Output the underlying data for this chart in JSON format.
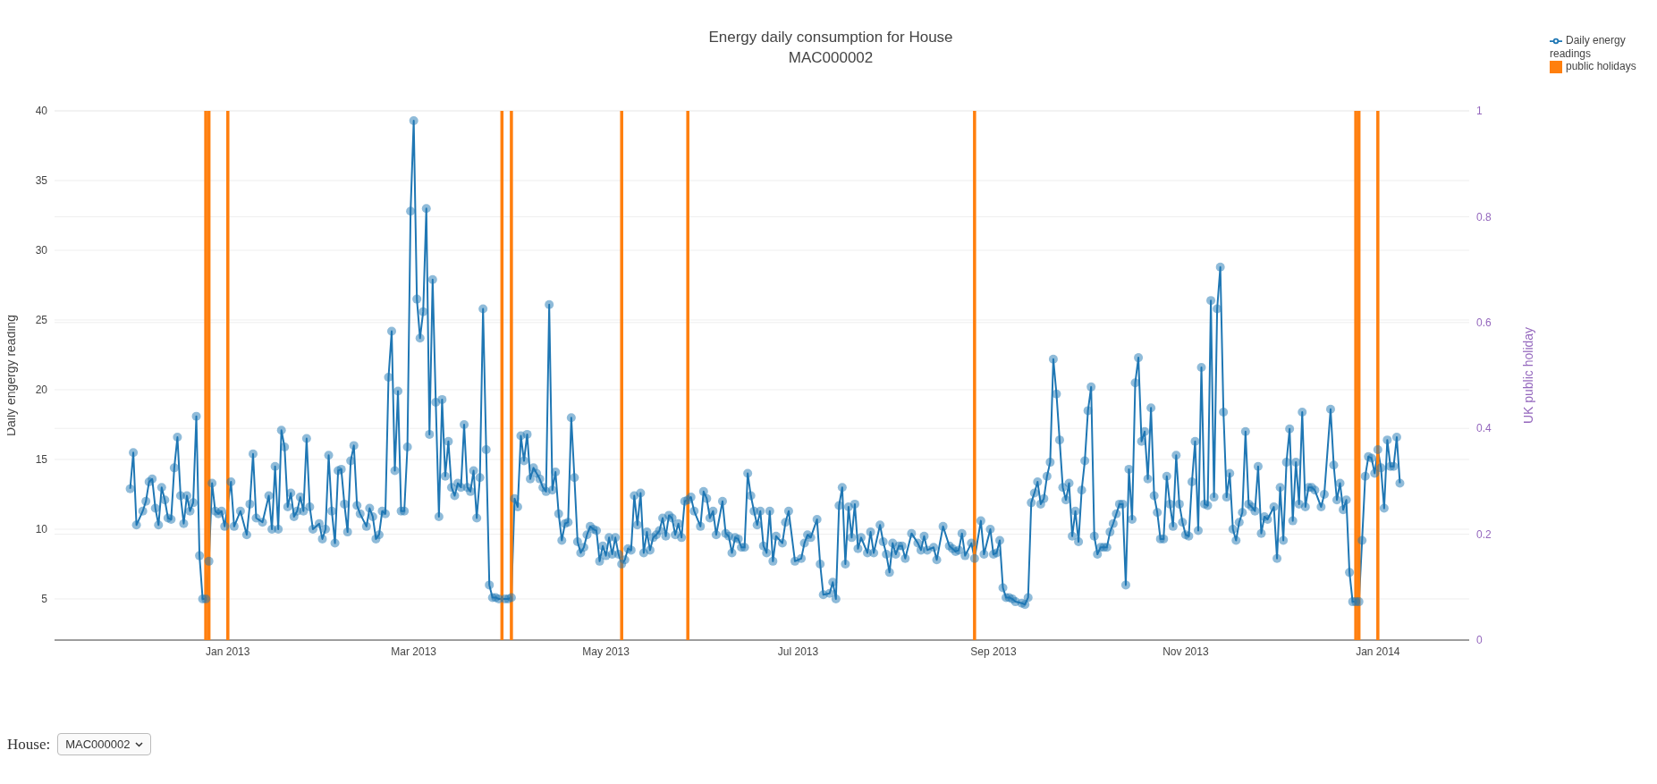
{
  "chart_data": {
    "type": "line",
    "title": "Energy daily consumption for House\nMAC000002",
    "ylabel": "Daily engergy reading",
    "y2label": "UK public holiday",
    "xlim": [
      "2012-11-07",
      "2014-01-30"
    ],
    "xticks": [
      {
        "value": "2013-01-01",
        "label": "Jan 2013"
      },
      {
        "value": "2013-03-01",
        "label": "Mar 2013"
      },
      {
        "value": "2013-05-01",
        "label": "May 2013"
      },
      {
        "value": "2013-07-01",
        "label": "Jul 2013"
      },
      {
        "value": "2013-09-01",
        "label": "Sep 2013"
      },
      {
        "value": "2013-11-01",
        "label": "Nov 2013"
      },
      {
        "value": "2014-01-01",
        "label": "Jan 2014"
      }
    ],
    "ylim": [
      2.05,
      40
    ],
    "yticks": [
      5,
      10,
      15,
      20,
      25,
      30,
      35,
      40
    ],
    "y2lim": [
      0,
      1
    ],
    "y2ticks": [
      0,
      0.2,
      0.4,
      0.6,
      0.8,
      1
    ],
    "grid": "y",
    "legend": "top right",
    "marker": "circle",
    "annotations": [
      "House:",
      "MAC000002"
    ],
    "series": [
      {
        "name": "Daily energy readings",
        "color": "#1f77b4",
        "x": [
          "2012-12-01",
          "2012-12-02",
          "2012-12-03",
          "2012-12-05",
          "2012-12-06",
          "2012-12-07",
          "2012-12-08",
          "2012-12-09",
          "2012-12-10",
          "2012-12-11",
          "2012-12-12",
          "2012-12-13",
          "2012-12-14",
          "2012-12-15",
          "2012-12-16",
          "2012-12-17",
          "2012-12-18",
          "2012-12-19",
          "2012-12-20",
          "2012-12-21",
          "2012-12-22",
          "2012-12-23",
          "2012-12-24",
          "2012-12-25",
          "2012-12-26",
          "2012-12-27",
          "2012-12-28",
          "2012-12-29",
          "2012-12-30",
          "2012-12-31",
          "2013-01-02",
          "2013-01-03",
          "2013-01-05",
          "2013-01-07",
          "2013-01-08",
          "2013-01-09",
          "2013-01-10",
          "2013-01-12",
          "2013-01-14",
          "2013-01-15",
          "2013-01-16",
          "2013-01-17",
          "2013-01-18",
          "2013-01-19",
          "2013-01-20",
          "2013-01-21",
          "2013-01-22",
          "2013-01-23",
          "2013-01-24",
          "2013-01-25",
          "2013-01-26",
          "2013-01-27",
          "2013-01-28",
          "2013-01-30",
          "2013-01-31",
          "2013-02-01",
          "2013-02-02",
          "2013-02-03",
          "2013-02-04",
          "2013-02-05",
          "2013-02-06",
          "2013-02-07",
          "2013-02-08",
          "2013-02-09",
          "2013-02-10",
          "2013-02-11",
          "2013-02-12",
          "2013-02-14",
          "2013-02-15",
          "2013-02-16",
          "2013-02-17",
          "2013-02-18",
          "2013-02-19",
          "2013-02-20",
          "2013-02-21",
          "2013-02-22",
          "2013-02-23",
          "2013-02-24",
          "2013-02-25",
          "2013-02-26",
          "2013-02-27",
          "2013-02-28",
          "2013-03-01",
          "2013-03-02",
          "2013-03-03",
          "2013-03-04",
          "2013-03-05",
          "2013-03-06",
          "2013-03-07",
          "2013-03-08",
          "2013-03-09",
          "2013-03-10",
          "2013-03-11",
          "2013-03-12",
          "2013-03-13",
          "2013-03-14",
          "2013-03-15",
          "2013-03-16",
          "2013-03-17",
          "2013-03-18",
          "2013-03-19",
          "2013-03-20",
          "2013-03-21",
          "2013-03-22",
          "2013-03-23",
          "2013-03-24",
          "2013-03-25",
          "2013-03-26",
          "2013-03-27",
          "2013-03-28",
          "2013-03-30",
          "2013-03-31",
          "2013-04-01",
          "2013-04-02",
          "2013-04-03",
          "2013-04-04",
          "2013-04-05",
          "2013-04-06",
          "2013-04-07",
          "2013-04-08",
          "2013-04-09",
          "2013-04-10",
          "2013-04-11",
          "2013-04-12",
          "2013-04-13",
          "2013-04-14",
          "2013-04-15",
          "2013-04-16",
          "2013-04-17",
          "2013-04-18",
          "2013-04-19",
          "2013-04-20",
          "2013-04-21",
          "2013-04-22",
          "2013-04-23",
          "2013-04-24",
          "2013-04-25",
          "2013-04-26",
          "2013-04-27",
          "2013-04-28",
          "2013-04-29",
          "2013-04-30",
          "2013-05-01",
          "2013-05-02",
          "2013-05-03",
          "2013-05-04",
          "2013-05-05",
          "2013-05-06",
          "2013-05-07",
          "2013-05-08",
          "2013-05-09",
          "2013-05-10",
          "2013-05-11",
          "2013-05-12",
          "2013-05-13",
          "2013-05-14",
          "2013-05-15",
          "2013-05-16",
          "2013-05-17",
          "2013-05-18",
          "2013-05-19",
          "2013-05-20",
          "2013-05-21",
          "2013-05-22",
          "2013-05-23",
          "2013-05-24",
          "2013-05-25",
          "2013-05-26",
          "2013-05-27",
          "2013-05-28",
          "2013-05-29",
          "2013-05-31",
          "2013-06-01",
          "2013-06-02",
          "2013-06-03",
          "2013-06-04",
          "2013-06-05",
          "2013-06-07",
          "2013-06-08",
          "2013-06-09",
          "2013-06-10",
          "2013-06-11",
          "2013-06-12",
          "2013-06-13",
          "2013-06-14",
          "2013-06-15",
          "2013-06-16",
          "2013-06-17",
          "2013-06-18",
          "2013-06-19",
          "2013-06-20",
          "2013-06-21",
          "2013-06-22",
          "2013-06-23",
          "2013-06-24",
          "2013-06-26",
          "2013-06-27",
          "2013-06-28",
          "2013-06-30",
          "2013-07-02",
          "2013-07-03",
          "2013-07-04",
          "2013-07-05",
          "2013-07-07",
          "2013-07-08",
          "2013-07-09",
          "2013-07-11",
          "2013-07-12",
          "2013-07-13",
          "2013-07-14",
          "2013-07-15",
          "2013-07-16",
          "2013-07-17",
          "2013-07-18",
          "2013-07-19",
          "2013-07-20",
          "2013-07-21",
          "2013-07-23",
          "2013-07-24",
          "2013-07-25",
          "2013-07-27",
          "2013-07-28",
          "2013-07-29",
          "2013-07-30",
          "2013-07-31",
          "2013-08-01",
          "2013-08-02",
          "2013-08-03",
          "2013-08-04",
          "2013-08-06",
          "2013-08-08",
          "2013-08-09",
          "2013-08-10",
          "2013-08-11",
          "2013-08-13",
          "2013-08-14",
          "2013-08-16",
          "2013-08-18",
          "2013-08-19",
          "2013-08-20",
          "2013-08-21",
          "2013-08-22",
          "2013-08-23",
          "2013-08-25",
          "2013-08-26",
          "2013-08-28",
          "2013-08-29",
          "2013-08-31",
          "2013-09-01",
          "2013-09-02",
          "2013-09-03",
          "2013-09-04",
          "2013-09-05",
          "2013-09-06",
          "2013-09-07",
          "2013-09-08",
          "2013-09-10",
          "2013-09-11",
          "2013-09-12",
          "2013-09-13",
          "2013-09-14",
          "2013-09-15",
          "2013-09-16",
          "2013-09-17",
          "2013-09-18",
          "2013-09-19",
          "2013-09-20",
          "2013-09-21",
          "2013-09-22",
          "2013-09-23",
          "2013-09-24",
          "2013-09-25",
          "2013-09-26",
          "2013-09-27",
          "2013-09-28",
          "2013-09-29",
          "2013-09-30",
          "2013-10-01",
          "2013-10-02",
          "2013-10-03",
          "2013-10-04",
          "2013-10-05",
          "2013-10-06",
          "2013-10-07",
          "2013-10-08",
          "2013-10-09",
          "2013-10-10",
          "2013-10-11",
          "2013-10-12",
          "2013-10-13",
          "2013-10-14",
          "2013-10-15",
          "2013-10-16",
          "2013-10-17",
          "2013-10-18",
          "2013-10-19",
          "2013-10-20",
          "2013-10-21",
          "2013-10-22",
          "2013-10-23",
          "2013-10-24",
          "2013-10-25",
          "2013-10-26",
          "2013-10-27",
          "2013-10-28",
          "2013-10-29",
          "2013-10-30",
          "2013-10-31",
          "2013-11-01",
          "2013-11-02",
          "2013-11-03",
          "2013-11-04",
          "2013-11-05",
          "2013-11-06",
          "2013-11-07",
          "2013-11-08",
          "2013-11-09",
          "2013-11-10",
          "2013-11-11",
          "2013-11-12",
          "2013-11-13",
          "2013-11-14",
          "2013-11-15",
          "2013-11-16",
          "2013-11-17",
          "2013-11-18",
          "2013-11-19",
          "2013-11-20",
          "2013-11-21",
          "2013-11-22",
          "2013-11-23",
          "2013-11-24",
          "2013-11-25",
          "2013-11-26",
          "2013-11-27",
          "2013-11-29",
          "2013-11-30",
          "2013-12-01",
          "2013-12-02",
          "2013-12-03",
          "2013-12-04",
          "2013-12-05",
          "2013-12-06",
          "2013-12-07",
          "2013-12-08",
          "2013-12-09",
          "2013-12-10",
          "2013-12-11",
          "2013-12-12",
          "2013-12-14",
          "2013-12-15",
          "2013-12-17",
          "2013-12-18",
          "2013-12-19",
          "2013-12-20",
          "2013-12-21",
          "2013-12-22",
          "2013-12-23",
          "2013-12-24",
          "2013-12-25",
          "2013-12-26",
          "2013-12-27",
          "2013-12-28",
          "2013-12-29",
          "2013-12-30",
          "2013-12-31",
          "2014-01-01",
          "2014-01-02",
          "2014-01-03",
          "2014-01-04",
          "2014-01-05",
          "2014-01-06",
          "2014-01-07",
          "2014-01-08"
        ],
        "values": [
          12.9,
          15.5,
          10.3,
          11.3,
          12.0,
          13.4,
          13.6,
          11.5,
          10.3,
          13.0,
          12.1,
          10.8,
          10.7,
          14.4,
          16.6,
          12.4,
          10.4,
          12.4,
          11.3,
          11.9,
          18.1,
          8.1,
          5.0,
          5.0,
          7.7,
          13.3,
          11.3,
          11.1,
          11.3,
          10.2,
          13.4,
          10.2,
          11.3,
          9.6,
          11.8,
          15.4,
          10.8,
          10.5,
          12.4,
          10.0,
          14.5,
          10.0,
          17.1,
          15.9,
          11.6,
          12.6,
          10.9,
          11.3,
          12.3,
          11.3,
          16.5,
          11.6,
          10.0,
          10.4,
          9.3,
          10.0,
          15.3,
          11.3,
          9.0,
          14.2,
          14.3,
          11.8,
          9.8,
          14.9,
          16.0,
          11.7,
          11.1,
          10.2,
          11.5,
          10.9,
          9.3,
          9.6,
          11.3,
          11.1,
          20.9,
          24.2,
          14.2,
          19.9,
          11.3,
          11.3,
          15.9,
          32.8,
          39.3,
          26.5,
          23.7,
          25.6,
          33.0,
          16.8,
          27.9,
          19.1,
          10.9,
          19.3,
          13.8,
          16.3,
          13.0,
          12.4,
          13.3,
          13.0,
          17.5,
          13.0,
          12.7,
          14.2,
          10.8,
          13.7,
          25.8,
          15.7,
          6.0,
          5.1,
          5.1,
          5.0,
          5.0,
          5.0,
          5.1,
          12.2,
          11.6,
          16.7,
          14.9,
          16.8,
          13.6,
          14.4,
          14.0,
          13.6,
          13.0,
          12.7,
          26.1,
          12.8,
          14.1,
          11.1,
          9.2,
          10.4,
          10.5,
          18.0,
          13.7,
          9.1,
          8.3,
          8.7,
          9.6,
          10.2,
          10.0,
          9.9,
          7.7,
          8.8,
          8.1,
          9.4,
          8.2,
          9.4,
          8.2,
          7.5,
          7.8,
          8.6,
          8.5,
          12.4,
          10.3,
          12.6,
          8.3,
          9.8,
          8.5,
          9.4,
          9.6,
          9.9,
          10.8,
          9.5,
          11.0,
          10.8,
          9.6,
          10.4,
          9.4,
          12.0,
          12.1,
          12.3,
          11.3,
          10.2,
          12.7,
          12.2,
          10.8,
          11.3,
          9.6,
          12.0,
          9.7,
          9.5,
          8.3,
          9.4,
          9.3,
          8.7,
          8.7,
          14.0,
          12.4,
          11.3,
          10.3,
          11.3,
          8.8,
          8.3,
          11.3,
          7.7,
          9.5,
          9.0,
          10.5,
          11.3,
          7.7,
          7.9,
          9.0,
          9.6,
          9.4,
          10.7,
          7.5,
          5.3,
          5.4,
          6.2,
          5.0,
          11.7,
          13.0,
          7.5,
          11.6,
          9.4,
          11.8,
          8.6,
          9.4,
          8.3,
          9.8,
          8.3,
          10.3,
          9.1,
          8.2,
          6.9,
          9.0,
          8.2,
          8.8,
          8.8,
          7.9,
          9.7,
          9.0,
          8.5,
          9.5,
          8.5,
          8.7,
          7.8,
          10.2,
          8.8,
          8.6,
          8.4,
          8.5,
          9.7,
          8.1,
          9.0,
          7.9,
          10.6,
          8.2,
          10.0,
          8.2,
          8.3,
          9.2,
          5.8,
          5.1,
          5.1,
          5.0,
          4.8,
          4.7,
          4.6,
          5.1,
          11.9,
          12.6,
          13.4,
          11.8,
          12.2,
          13.8,
          14.8,
          22.2,
          19.7,
          16.4,
          13.0,
          12.1,
          13.3,
          9.5,
          11.3,
          9.1,
          12.8,
          14.9,
          18.5,
          20.2,
          9.5,
          8.2,
          8.7,
          8.7,
          8.7,
          9.8,
          10.4,
          11.1,
          11.8,
          11.8,
          6.0,
          14.3,
          10.7,
          20.5,
          22.3,
          16.3,
          17.0,
          13.6,
          18.7,
          12.4,
          11.2,
          9.3,
          9.3,
          13.8,
          11.8,
          10.2,
          15.3,
          11.8,
          10.5,
          9.6,
          9.5,
          13.4,
          16.3,
          9.9,
          21.6,
          11.8,
          11.7,
          26.4,
          12.3,
          25.8,
          28.8,
          18.4,
          12.3,
          14.0,
          10.0,
          9.2,
          10.5,
          11.2,
          17.0,
          11.8,
          11.6,
          11.3,
          14.5,
          9.7,
          10.9,
          10.7,
          11.6,
          7.9,
          13.0,
          9.2,
          14.8,
          17.2,
          10.6,
          14.8,
          11.8,
          18.4,
          11.6,
          13.0,
          13.0,
          12.8,
          11.6,
          12.5,
          18.6,
          14.6,
          12.1,
          13.3,
          11.4,
          12.1,
          6.9,
          4.8,
          4.8,
          4.8,
          9.2,
          13.8,
          15.2,
          15.1,
          14.0,
          15.7,
          14.4,
          11.5,
          16.4,
          14.5,
          14.5,
          16.6,
          13.3
        ]
      },
      {
        "name": "public holidays",
        "type": "bar",
        "axis": "y2",
        "color": "#ff7f0e",
        "x": [
          "2012-12-25",
          "2012-12-26",
          "2013-01-01",
          "2013-03-29",
          "2013-04-01",
          "2013-05-06",
          "2013-05-27",
          "2013-08-26",
          "2013-12-25",
          "2013-12-26",
          "2014-01-01"
        ],
        "values": [
          1,
          1,
          1,
          1,
          1,
          1,
          1,
          1,
          1,
          1,
          1
        ]
      }
    ]
  }
}
